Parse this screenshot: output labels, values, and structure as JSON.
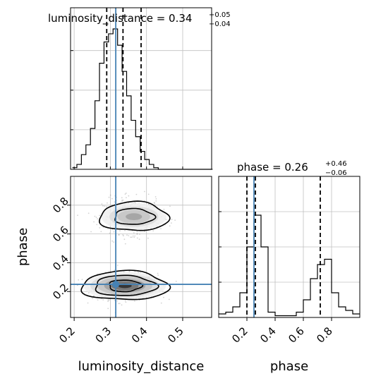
{
  "chart_data": [
    {
      "type": "histogram",
      "panel": "luminosity_distance-marginal",
      "title": {
        "main": "luminosity_distance = 0.34",
        "plus": "+0.05",
        "minus": "−0.04"
      },
      "xlim": [
        0.19,
        0.58
      ],
      "xticks": [
        0.2,
        0.3,
        0.4,
        0.5
      ],
      "grid": true,
      "bins": {
        "start": 0.195,
        "width": 0.0125,
        "counts": [
          0.01,
          0.03,
          0.09,
          0.15,
          0.25,
          0.42,
          0.65,
          0.78,
          0.83,
          0.86,
          0.76,
          0.6,
          0.45,
          0.3,
          0.2,
          0.11,
          0.06,
          0.03,
          0.01,
          0,
          0,
          0,
          0,
          0,
          0,
          0,
          0,
          0,
          0,
          0,
          0
        ]
      },
      "ylim": [
        0,
        1
      ],
      "quantiles": [
        0.29,
        0.335,
        0.385
      ],
      "truth": 0.315
    },
    {
      "type": "histogram",
      "panel": "phase-marginal",
      "title": {
        "main": "phase = 0.26",
        "plus": "+0.46",
        "minus": "−0.06"
      },
      "xlim": [
        0.0,
        1.0
      ],
      "xticks": [
        0.2,
        0.4,
        0.6,
        0.8
      ],
      "xlabel": "phase",
      "grid": true,
      "bins": {
        "start": 0.0,
        "width": 0.05,
        "counts": [
          0.02,
          0.03,
          0.06,
          0.14,
          0.4,
          0.58,
          0.4,
          0.03,
          0.01,
          0.01,
          0.01,
          0.03,
          0.1,
          0.22,
          0.3,
          0.33,
          0.14,
          0.06,
          0.04,
          0.02,
          0.02
        ]
      },
      "ylim": [
        0,
        0.8
      ],
      "quantiles": [
        0.2,
        0.26,
        0.72
      ],
      "truth": 0.25
    },
    {
      "type": "scatter",
      "panel": "joint-density",
      "xlim": [
        0.19,
        0.58
      ],
      "ylim": [
        0.02,
        1.0
      ],
      "xticks": [
        0.2,
        0.3,
        0.4,
        0.5
      ],
      "yticks": [
        0.2,
        0.4,
        0.6,
        0.8
      ],
      "xlabel": "luminosity_distance",
      "ylabel": "phase",
      "grid": true,
      "modes": [
        {
          "center": [
            0.34,
            0.235
          ],
          "spread": [
            0.045,
            0.045
          ],
          "weight": 0.62
        },
        {
          "center": [
            0.36,
            0.72
          ],
          "spread": [
            0.04,
            0.06
          ],
          "weight": 0.38
        }
      ],
      "contours": [
        {
          "center": [
            0.34,
            0.24
          ],
          "rx": [
            0.12,
            0.085,
            0.045
          ],
          "ry": [
            0.1,
            0.07,
            0.04
          ]
        },
        {
          "center": [
            0.365,
            0.72
          ],
          "rx": [
            0.095,
            0.055
          ],
          "ry": [
            0.1,
            0.055
          ]
        }
      ],
      "truth": [
        0.315,
        0.25
      ],
      "colors": {
        "truth": "#4682b4",
        "grid": "#c0c0c0",
        "line": "#000000",
        "points": "#808080"
      }
    }
  ]
}
